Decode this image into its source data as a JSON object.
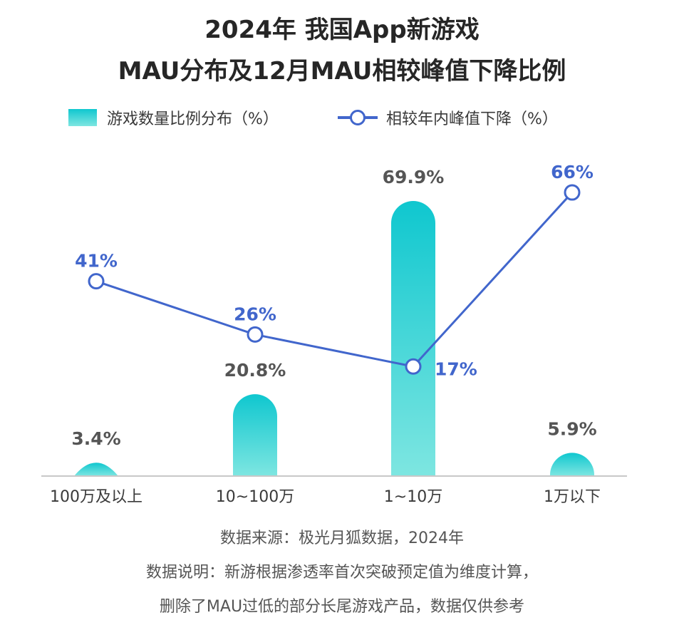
{
  "title": {
    "line1": "2024年 我国App新游戏",
    "line2": "MAU分布及12月MAU相较峰值下降比例"
  },
  "chart_data": {
    "type": "bar",
    "title": "2024年 我国App新游戏 MAU分布及12月MAU相较峰值下降比例",
    "categories": [
      "100万及以上",
      "10~100万",
      "1~10万",
      "1万以下"
    ],
    "series": [
      {
        "name": "游戏数量比例分布（%）",
        "kind": "bar",
        "values": [
          3.4,
          20.8,
          69.9,
          5.9
        ],
        "labels": [
          "3.4%",
          "20.8%",
          "69.9%",
          "5.9%"
        ],
        "color": "#0fc7cf"
      },
      {
        "name": "相较年内峰值下降（%）",
        "kind": "line",
        "values": [
          41,
          26,
          17,
          66
        ],
        "labels": [
          "41%",
          "26%",
          "17%",
          "66%"
        ],
        "color": "#4166cc"
      }
    ],
    "grid": false,
    "legend_position": "top"
  },
  "colors": {
    "bar_top": "#0fc7cf",
    "bar_bottom": "#7ee6e1",
    "line": "#4166cc",
    "bar_label": "#555555",
    "axis": "#c8c8c8"
  },
  "footer": {
    "source": "数据来源：极光月狐数据，2024年",
    "note_line1": "数据说明：新游根据渗透率首次突破预定值为维度计算，",
    "note_line2": "删除了MAU过低的部分长尾游戏产品，数据仅供参考"
  }
}
